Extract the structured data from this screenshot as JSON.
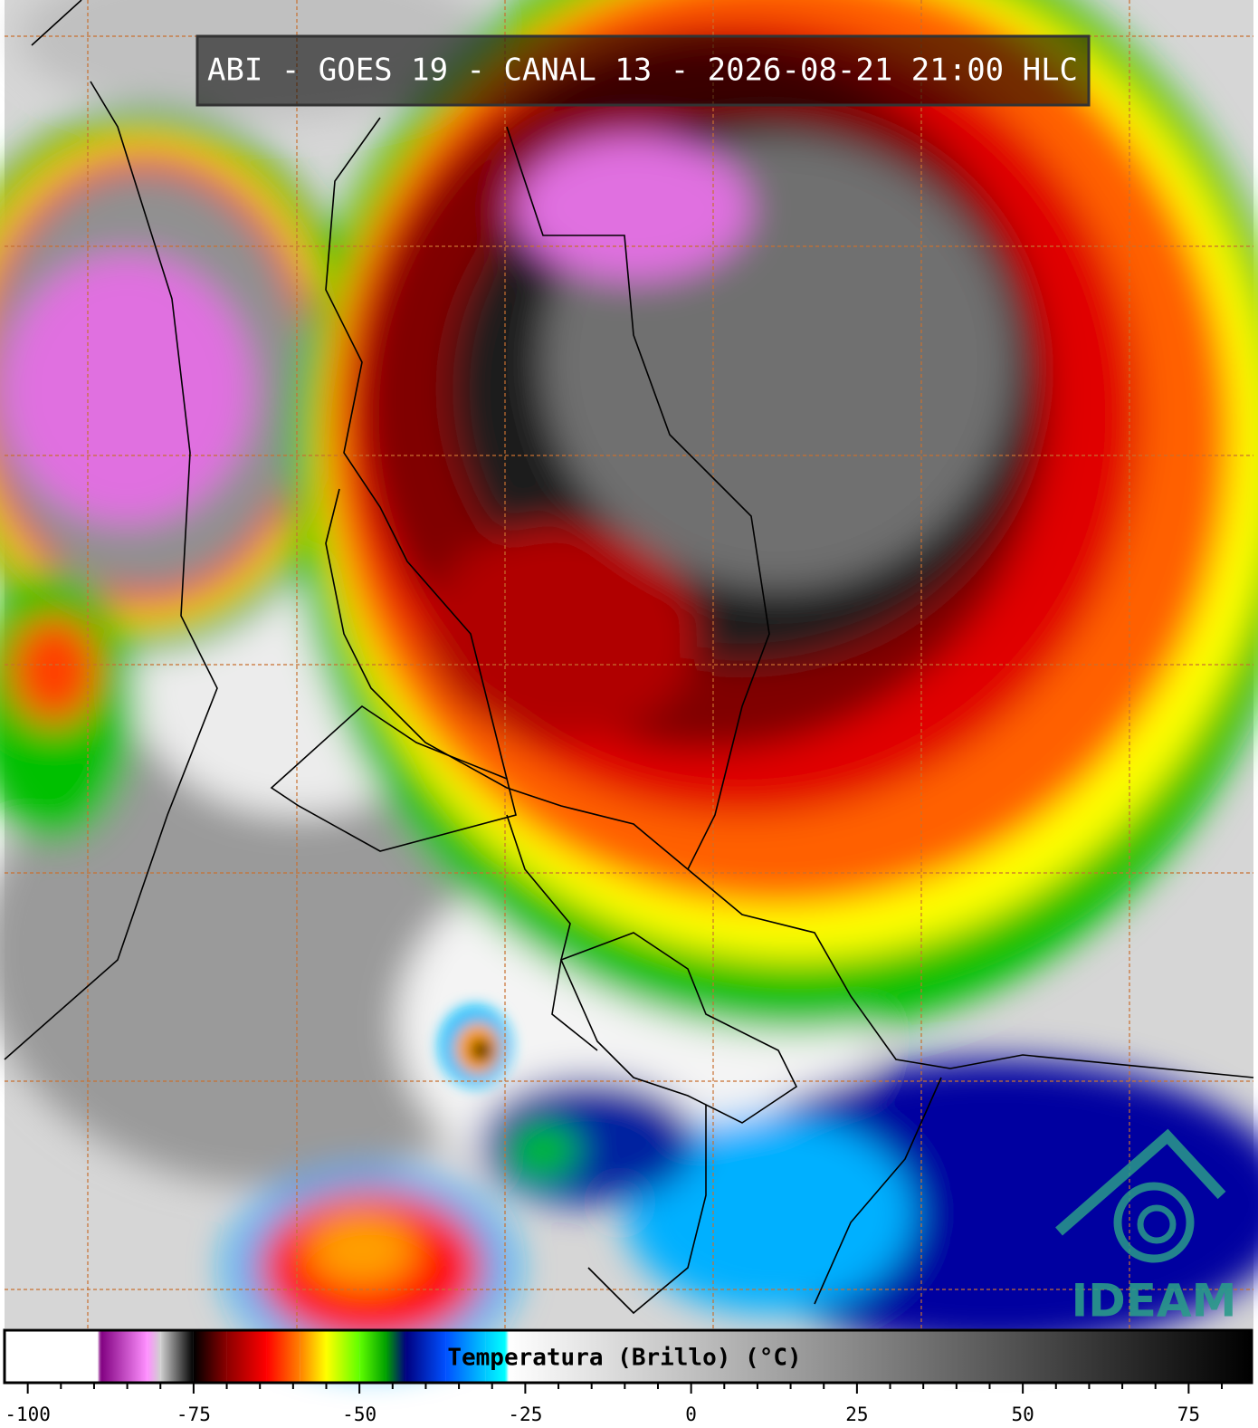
{
  "title": "ABI - GOES 19 - CANAL 13 - 2026-08-21 21:00 HLC",
  "logo": "IDEAM",
  "colorbar": {
    "label": "Temperatura (Brillo) (°C)",
    "xlim": [
      -103.5,
      84.5
    ],
    "ticks": [
      -100,
      -75,
      -50,
      -25,
      0,
      25,
      50,
      75
    ],
    "minor_ticks": [
      -95,
      -90,
      -85,
      -80,
      -70,
      -65,
      -60,
      -55,
      -45,
      -40,
      -35,
      -30,
      -20,
      -15,
      -10,
      -5,
      5,
      10,
      15,
      20,
      30,
      35,
      40,
      45,
      55,
      60,
      65,
      70,
      80
    ],
    "stops": [
      {
        "value": -103.5,
        "color": "#ffffff"
      },
      {
        "value": -89.5,
        "color": "#ffffff"
      },
      {
        "value": -89,
        "color": "#800080"
      },
      {
        "value": -82,
        "color": "#ff90ff"
      },
      {
        "value": -80,
        "color": "#d0d0d0"
      },
      {
        "value": -75,
        "color": "#000000"
      },
      {
        "value": -70,
        "color": "#8b0000"
      },
      {
        "value": -64,
        "color": "#ff0000"
      },
      {
        "value": -59,
        "color": "#ff8000"
      },
      {
        "value": -55,
        "color": "#ffff00"
      },
      {
        "value": -50,
        "color": "#60ff00"
      },
      {
        "value": -46,
        "color": "#00a000"
      },
      {
        "value": -43,
        "color": "#000080"
      },
      {
        "value": -37,
        "color": "#0050ff"
      },
      {
        "value": -31,
        "color": "#00c8ff"
      },
      {
        "value": -28,
        "color": "#00ffff"
      },
      {
        "value": -27.5,
        "color": "#ffffff"
      },
      {
        "value": 84.5,
        "color": "#000000"
      }
    ]
  }
}
